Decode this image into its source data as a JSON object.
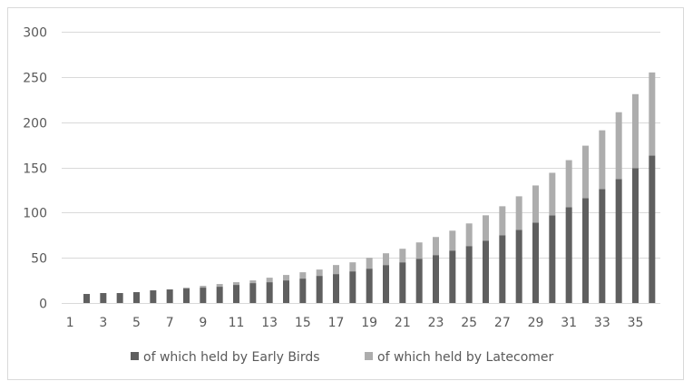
{
  "chart_data": {
    "type": "bar",
    "stacked": true,
    "title": "",
    "xlabel": "",
    "ylabel": "",
    "ylim": [
      0,
      300
    ],
    "yticks": [
      0,
      50,
      100,
      150,
      200,
      250,
      300
    ],
    "grid": true,
    "legend_position": "bottom",
    "categories": [
      1,
      2,
      3,
      4,
      5,
      6,
      7,
      8,
      9,
      10,
      11,
      12,
      13,
      14,
      15,
      16,
      17,
      18,
      19,
      20,
      21,
      22,
      23,
      24,
      25,
      26,
      27,
      28,
      29,
      30,
      31,
      32,
      33,
      34,
      35,
      36
    ],
    "xtick_labels": [
      "1",
      "3",
      "5",
      "7",
      "9",
      "11",
      "13",
      "15",
      "17",
      "19",
      "21",
      "23",
      "25",
      "27",
      "29",
      "31",
      "33",
      "35"
    ],
    "series": [
      {
        "name": "of which held by Early Birds",
        "color": "#5f5f5f",
        "values": [
          0,
          10,
          11,
          11,
          12,
          14,
          15,
          16,
          17,
          18,
          20,
          22,
          23,
          25,
          27,
          30,
          32,
          35,
          38,
          42,
          45,
          49,
          53,
          58,
          63,
          69,
          75,
          81,
          89,
          97,
          106,
          116,
          126,
          137,
          149,
          163
        ]
      },
      {
        "name": "of which held by Latecomer",
        "color": "#adadad",
        "values": [
          0,
          0,
          0,
          0,
          0,
          0,
          0,
          1,
          2,
          3,
          3,
          3,
          5,
          6,
          7,
          7,
          10,
          10,
          12,
          13,
          15,
          18,
          20,
          22,
          25,
          28,
          32,
          37,
          41,
          47,
          52,
          58,
          65,
          74,
          82,
          92
        ]
      }
    ]
  }
}
